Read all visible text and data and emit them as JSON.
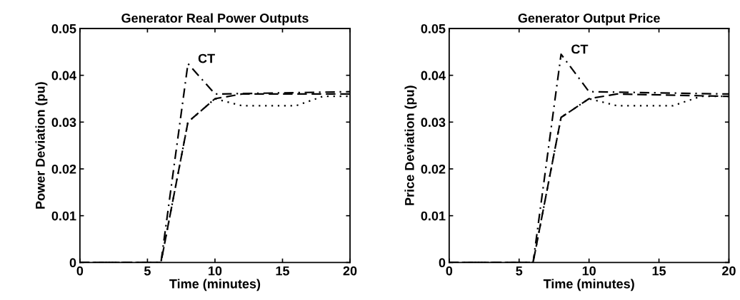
{
  "chart_data": [
    {
      "type": "line",
      "title": "Generator Real Power Outputs",
      "xlabel": "Time (minutes)",
      "ylabel": "Power Deviation (pu)",
      "xlim": [
        0,
        20
      ],
      "ylim": [
        0,
        0.05
      ],
      "xticks": [
        0,
        5,
        10,
        15,
        20
      ],
      "yticks": [
        0,
        0.01,
        0.02,
        0.03,
        0.04,
        0.05
      ],
      "grid": false,
      "legend": false,
      "marker": "none",
      "annotations": [
        {
          "text": "CT",
          "x": 8,
          "y": 0.0425
        }
      ],
      "series": [
        {
          "color": "#000000",
          "line_style": "dashdot",
          "x": [
            0,
            6,
            8,
            10,
            20
          ],
          "values": [
            0,
            0,
            0.0425,
            0.036,
            0.0365
          ]
        },
        {
          "color": "#000000",
          "line_style": "dashed",
          "x": [
            0,
            6,
            8,
            10,
            12,
            20
          ],
          "values": [
            0,
            0,
            0.03,
            0.035,
            0.036,
            0.036
          ]
        },
        {
          "color": "#000000",
          "line_style": "dotted",
          "x": [
            0,
            6,
            8,
            10,
            12,
            16,
            18,
            20
          ],
          "values": [
            0,
            0,
            0.03,
            0.035,
            0.0335,
            0.0335,
            0.0355,
            0.0355
          ]
        }
      ]
    },
    {
      "type": "line",
      "title": "Generator Output Price",
      "xlabel": "Time (minutes)",
      "ylabel": "Price Deviation (pu)",
      "xlim": [
        0,
        20
      ],
      "ylim": [
        0,
        0.05
      ],
      "xticks": [
        0,
        5,
        10,
        15,
        20
      ],
      "yticks": [
        0,
        0.01,
        0.02,
        0.03,
        0.04,
        0.05
      ],
      "grid": false,
      "legend": false,
      "marker": "none",
      "annotations": [
        {
          "text": "CT",
          "x": 8,
          "y": 0.0445
        }
      ],
      "series": [
        {
          "color": "#000000",
          "line_style": "dashdot",
          "x": [
            0,
            6,
            8,
            10,
            20
          ],
          "values": [
            0,
            0,
            0.0445,
            0.0365,
            0.036
          ]
        },
        {
          "color": "#000000",
          "line_style": "dashed",
          "x": [
            0,
            6,
            8,
            10,
            12,
            20
          ],
          "values": [
            0,
            0,
            0.031,
            0.035,
            0.036,
            0.0355
          ]
        },
        {
          "color": "#000000",
          "line_style": "dotted",
          "x": [
            0,
            6,
            8,
            10,
            12,
            16,
            18,
            20
          ],
          "values": [
            0,
            0,
            0.031,
            0.035,
            0.0335,
            0.0335,
            0.0355,
            0.0355
          ]
        }
      ]
    }
  ]
}
